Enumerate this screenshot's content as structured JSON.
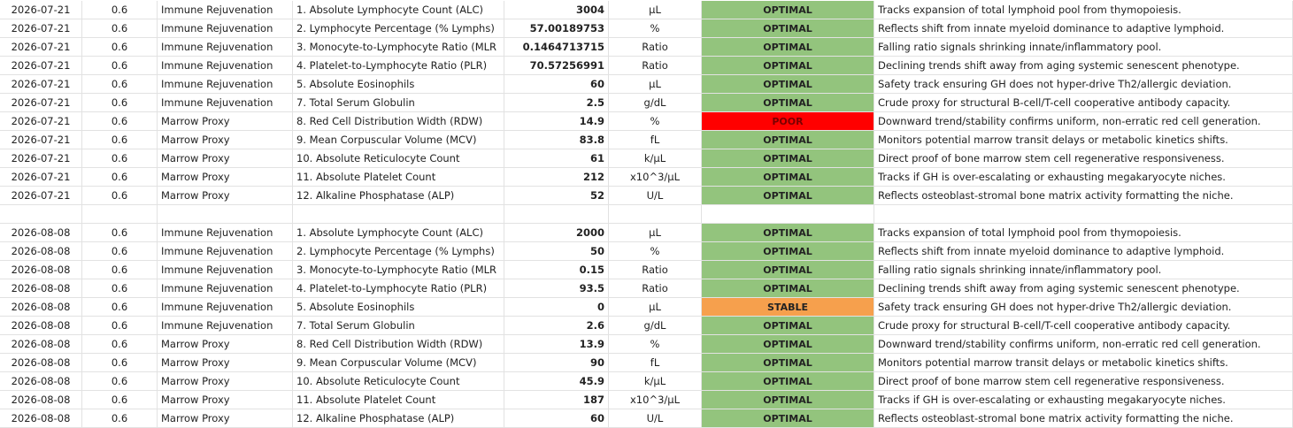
{
  "table": {
    "status_colors": {
      "OPTIMAL": "#93c47d",
      "POOR": "#ff0000",
      "STABLE": "#f6a04d"
    },
    "groups": [
      {
        "rows": [
          [
            "2026-07-21",
            "0.6",
            "Immune Rejuvenation",
            "1. Absolute Lymphocyte Count (ALC)",
            "3004",
            "µL",
            "OPTIMAL",
            "Tracks expansion of total lymphoid pool from thymopoiesis."
          ],
          [
            "2026-07-21",
            "0.6",
            "Immune Rejuvenation",
            "2. Lymphocyte Percentage (% Lymphs)",
            "57.00189753",
            "%",
            "OPTIMAL",
            "Reflects shift from innate myeloid dominance to adaptive lymphoid."
          ],
          [
            "2026-07-21",
            "0.6",
            "Immune Rejuvenation",
            "3. Monocyte-to-Lymphocyte Ratio (MLR",
            "0.1464713715",
            "Ratio",
            "OPTIMAL",
            "Falling ratio signals shrinking innate/inflammatory pool."
          ],
          [
            "2026-07-21",
            "0.6",
            "Immune Rejuvenation",
            "4. Platelet-to-Lymphocyte Ratio (PLR)",
            "70.57256991",
            "Ratio",
            "OPTIMAL",
            "Declining trends shift away from aging systemic senescent phenotype."
          ],
          [
            "2026-07-21",
            "0.6",
            "Immune Rejuvenation",
            "5. Absolute Eosinophils",
            "60",
            "µL",
            "OPTIMAL",
            "Safety track ensuring GH does not hyper-drive Th2/allergic deviation."
          ],
          [
            "2026-07-21",
            "0.6",
            "Immune Rejuvenation",
            "7. Total Serum Globulin",
            "2.5",
            "g/dL",
            "OPTIMAL",
            "Crude proxy for structural B-cell/T-cell cooperative antibody capacity."
          ],
          [
            "2026-07-21",
            "0.6",
            "Marrow Proxy",
            "8. Red Cell Distribution Width (RDW)",
            "14.9",
            "%",
            "POOR",
            "Downward trend/stability confirms uniform, non-erratic red cell generation."
          ],
          [
            "2026-07-21",
            "0.6",
            "Marrow Proxy",
            "9. Mean Corpuscular Volume (MCV)",
            "83.8",
            "fL",
            "OPTIMAL",
            "Monitors potential marrow transit delays or metabolic kinetics shifts."
          ],
          [
            "2026-07-21",
            "0.6",
            "Marrow Proxy",
            "10. Absolute Reticulocyte Count",
            "61",
            "k/µL",
            "OPTIMAL",
            "Direct proof of bone marrow stem cell regenerative responsiveness."
          ],
          [
            "2026-07-21",
            "0.6",
            "Marrow Proxy",
            "11. Absolute Platelet Count",
            "212",
            "x10^3/µL",
            "OPTIMAL",
            "Tracks if GH is over-escalating or exhausting megakaryocyte niches."
          ],
          [
            "2026-07-21",
            "0.6",
            "Marrow Proxy",
            "12. Alkaline Phosphatase (ALP)",
            "52",
            "U/L",
            "OPTIMAL",
            "Reflects osteoblast-stromal bone matrix activity formatting the niche."
          ]
        ]
      },
      {
        "rows": [
          [
            "2026-08-08",
            "0.6",
            "Immune Rejuvenation",
            "1. Absolute Lymphocyte Count (ALC)",
            "2000",
            "µL",
            "OPTIMAL",
            "Tracks expansion of total lymphoid pool from thymopoiesis."
          ],
          [
            "2026-08-08",
            "0.6",
            "Immune Rejuvenation",
            "2. Lymphocyte Percentage (% Lymphs)",
            "50",
            "%",
            "OPTIMAL",
            "Reflects shift from innate myeloid dominance to adaptive lymphoid."
          ],
          [
            "2026-08-08",
            "0.6",
            "Immune Rejuvenation",
            "3. Monocyte-to-Lymphocyte Ratio (MLR",
            "0.15",
            "Ratio",
            "OPTIMAL",
            "Falling ratio signals shrinking innate/inflammatory pool."
          ],
          [
            "2026-08-08",
            "0.6",
            "Immune Rejuvenation",
            "4. Platelet-to-Lymphocyte Ratio (PLR)",
            "93.5",
            "Ratio",
            "OPTIMAL",
            "Declining trends shift away from aging systemic senescent phenotype."
          ],
          [
            "2026-08-08",
            "0.6",
            "Immune Rejuvenation",
            "5. Absolute Eosinophils",
            "0",
            "µL",
            "STABLE",
            "Safety track ensuring GH does not hyper-drive Th2/allergic deviation."
          ],
          [
            "2026-08-08",
            "0.6",
            "Immune Rejuvenation",
            "7. Total Serum Globulin",
            "2.6",
            "g/dL",
            "OPTIMAL",
            "Crude proxy for structural B-cell/T-cell cooperative antibody capacity."
          ],
          [
            "2026-08-08",
            "0.6",
            "Marrow Proxy",
            "8. Red Cell Distribution Width (RDW)",
            "13.9",
            "%",
            "OPTIMAL",
            "Downward trend/stability confirms uniform, non-erratic red cell generation."
          ],
          [
            "2026-08-08",
            "0.6",
            "Marrow Proxy",
            "9. Mean Corpuscular Volume (MCV)",
            "90",
            "fL",
            "OPTIMAL",
            "Monitors potential marrow transit delays or metabolic kinetics shifts."
          ],
          [
            "2026-08-08",
            "0.6",
            "Marrow Proxy",
            "10. Absolute Reticulocyte Count",
            "45.9",
            "k/µL",
            "OPTIMAL",
            "Direct proof of bone marrow stem cell regenerative responsiveness."
          ],
          [
            "2026-08-08",
            "0.6",
            "Marrow Proxy",
            "11. Absolute Platelet Count",
            "187",
            "x10^3/µL",
            "OPTIMAL",
            "Tracks if GH is over-escalating or exhausting megakaryocyte niches."
          ],
          [
            "2026-08-08",
            "0.6",
            "Marrow Proxy",
            "12. Alkaline Phosphatase (ALP)",
            "60",
            "U/L",
            "OPTIMAL",
            "Reflects osteoblast-stromal bone matrix activity formatting the niche."
          ]
        ]
      }
    ]
  }
}
